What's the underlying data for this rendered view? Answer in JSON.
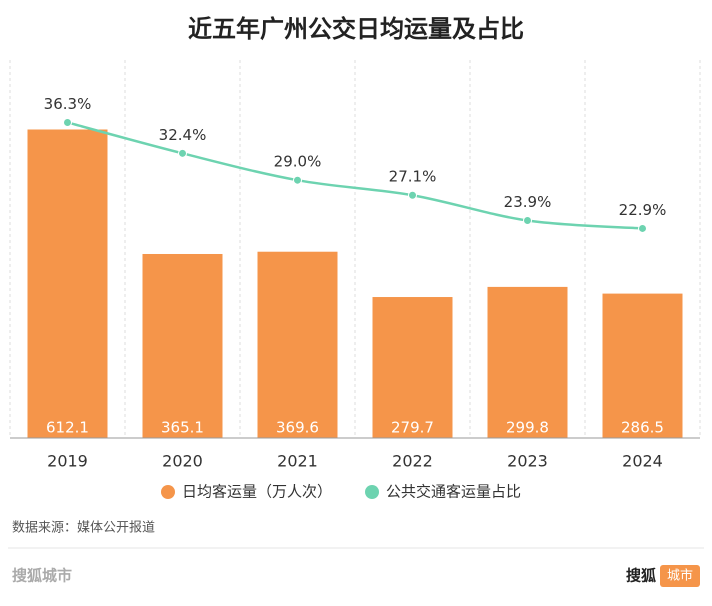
{
  "chart_data": {
    "type": "combo",
    "title": "近五年广州公交日均运量及占比",
    "categories": [
      "2019",
      "2020",
      "2021",
      "2022",
      "2023",
      "2024"
    ],
    "series": [
      {
        "name": "日均客运量（万人次）",
        "type": "bar",
        "color": "#f5954a",
        "values": [
          612.1,
          365.1,
          369.6,
          279.7,
          299.8,
          286.5
        ]
      },
      {
        "name": "公共交通客运量占比",
        "type": "line",
        "axis": "y2",
        "color": "#6dd3b0",
        "values": [
          36.3,
          32.4,
          29.0,
          27.1,
          23.9,
          22.9
        ],
        "value_labels": [
          "36.3%",
          "32.4%",
          "29.0%",
          "27.1%",
          "23.9%",
          "22.9%"
        ]
      }
    ],
    "ylim": [
      0,
      750
    ],
    "y2lim": [
      -3.6,
      44.2
    ],
    "grid": true,
    "source": "数据来源：媒体公开报道"
  },
  "footer": {
    "left": "搜狐城市",
    "brand": "搜狐",
    "badge": "城市"
  }
}
